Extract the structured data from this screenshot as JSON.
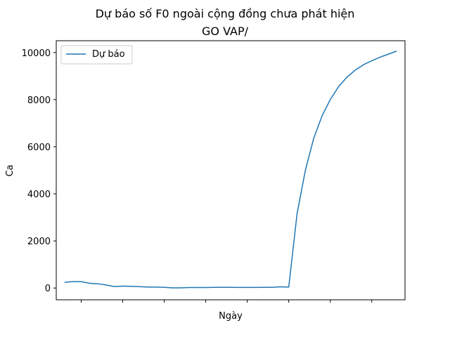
{
  "chart_data": {
    "type": "line",
    "title_line1": "Dự báo số F0 ngoài cộng đồng chưa phát hiện",
    "title_line2": "GO VAP/",
    "xlabel": "Ngày",
    "ylabel": "Ca",
    "ylim": [
      -500,
      10500
    ],
    "yticks": [
      0,
      2000,
      4000,
      6000,
      8000,
      10000
    ],
    "xlim": [
      -1,
      41
    ],
    "xticks": [
      2,
      7,
      12,
      17,
      22,
      27,
      32,
      37
    ],
    "grid": false,
    "legend_position": "upper-left",
    "series_color": "#1f77b4",
    "series": [
      {
        "name": "Dự báo",
        "x": [
          0,
          1,
          2,
          3,
          4,
          5,
          6,
          7,
          8,
          9,
          10,
          11,
          12,
          13,
          14,
          15,
          16,
          17,
          18,
          19,
          20,
          21,
          22,
          23,
          24,
          25,
          26,
          27,
          28,
          29,
          30,
          31,
          32,
          33,
          34,
          35,
          36,
          37,
          38,
          39,
          40
        ],
        "values": [
          240,
          270,
          270,
          200,
          180,
          130,
          60,
          80,
          70,
          60,
          40,
          40,
          30,
          5,
          5,
          20,
          20,
          20,
          30,
          30,
          30,
          25,
          25,
          25,
          30,
          30,
          50,
          40,
          3150,
          5000,
          6350,
          7300,
          8000,
          8550,
          8950,
          9250,
          9480,
          9650,
          9800,
          9930,
          10060
        ]
      }
    ]
  }
}
